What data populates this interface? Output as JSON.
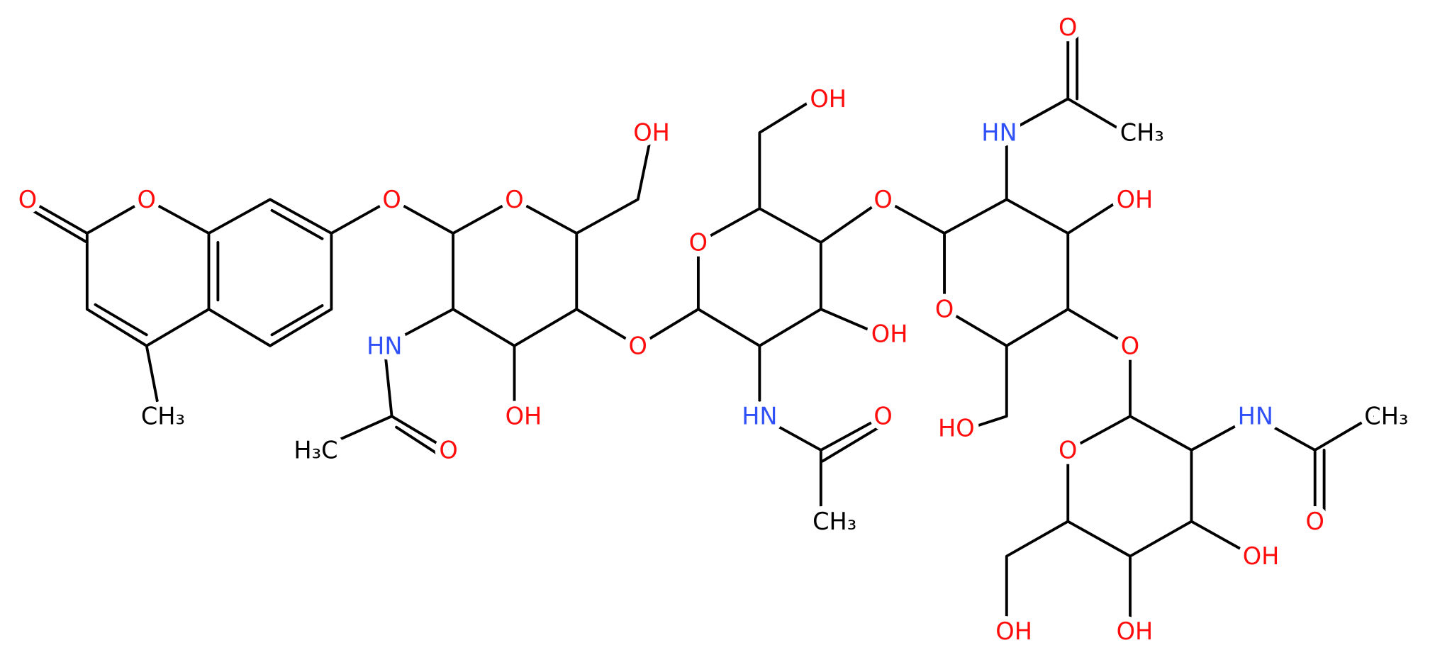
{
  "atoms": [
    {
      "label": "O"
    },
    {
      "label": "O"
    },
    {
      "label": "O"
    },
    {
      "label": "CH₃"
    },
    {
      "label": "O"
    },
    {
      "label": "OH"
    },
    {
      "label": "HN"
    },
    {
      "label": "H₃C"
    },
    {
      "label": "O"
    },
    {
      "label": "OH"
    },
    {
      "label": "O"
    },
    {
      "label": "O"
    },
    {
      "label": "OH"
    },
    {
      "label": "O"
    },
    {
      "label": "OH"
    },
    {
      "label": "HN"
    },
    {
      "label": "O"
    },
    {
      "label": "CH₃"
    },
    {
      "label": "O"
    },
    {
      "label": "HN"
    },
    {
      "label": "O"
    },
    {
      "label": "CH₃"
    },
    {
      "label": "OH"
    },
    {
      "label": "O"
    },
    {
      "label": "HO"
    },
    {
      "label": "O"
    },
    {
      "label": "HN"
    },
    {
      "label": "O"
    },
    {
      "label": "CH₃"
    },
    {
      "label": "OH"
    },
    {
      "label": "OH"
    },
    {
      "label": "OH"
    }
  ]
}
